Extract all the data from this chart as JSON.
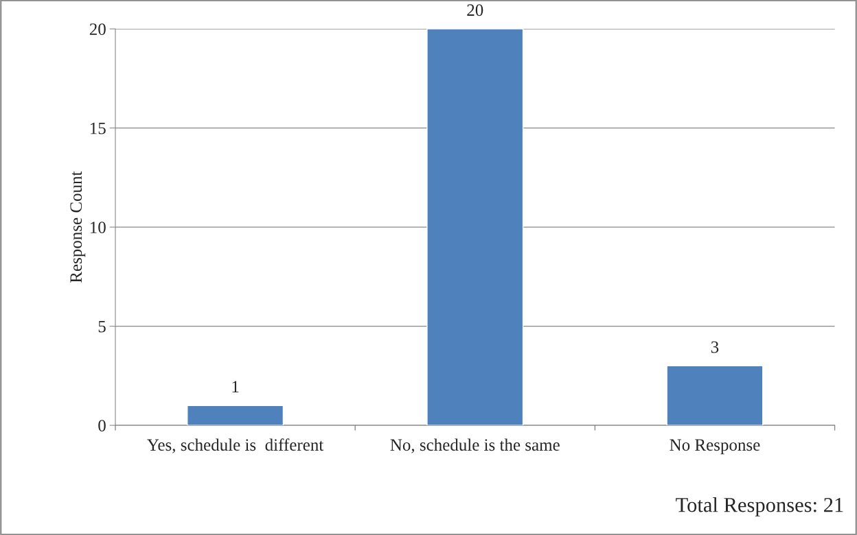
{
  "chart_data": {
    "type": "bar",
    "ylabel": "Response Count",
    "categories": [
      "Yes, schedule is  different",
      "No, schedule is the same",
      "No Response"
    ],
    "values": [
      1,
      20,
      3
    ],
    "color": "#4f81bd",
    "ylim": [
      0,
      20
    ],
    "yticks": [
      0,
      5,
      10,
      15,
      20
    ],
    "grid": "y",
    "data_labels": true,
    "annotations": [
      "Total Responses: 21"
    ]
  }
}
